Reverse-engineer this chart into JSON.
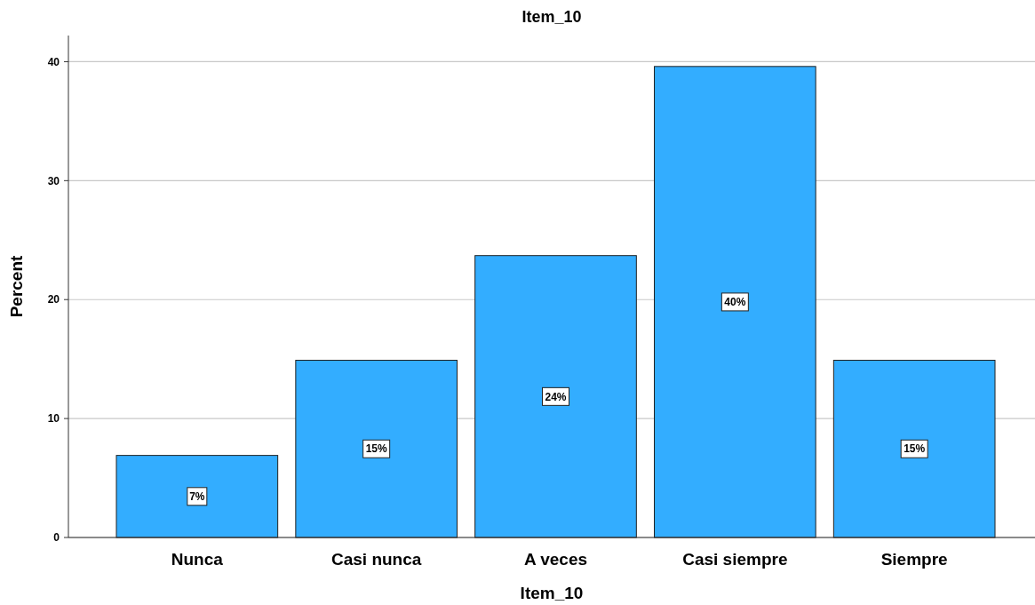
{
  "chart_data": {
    "type": "bar",
    "title": "Item_10",
    "xlabel": "Item_10",
    "ylabel": "Percent",
    "categories": [
      "Nunca",
      "Casi nunca",
      "A veces",
      "Casi siempre",
      "Siempre"
    ],
    "values": [
      6.9,
      14.9,
      23.7,
      39.6,
      14.9
    ],
    "value_labels": [
      "7%",
      "15%",
      "24%",
      "40%",
      "15%"
    ],
    "color": "#33adff",
    "ylim": [
      0,
      42.2
    ],
    "yticks": [
      0,
      10,
      20,
      30,
      40
    ],
    "grid": "y"
  }
}
